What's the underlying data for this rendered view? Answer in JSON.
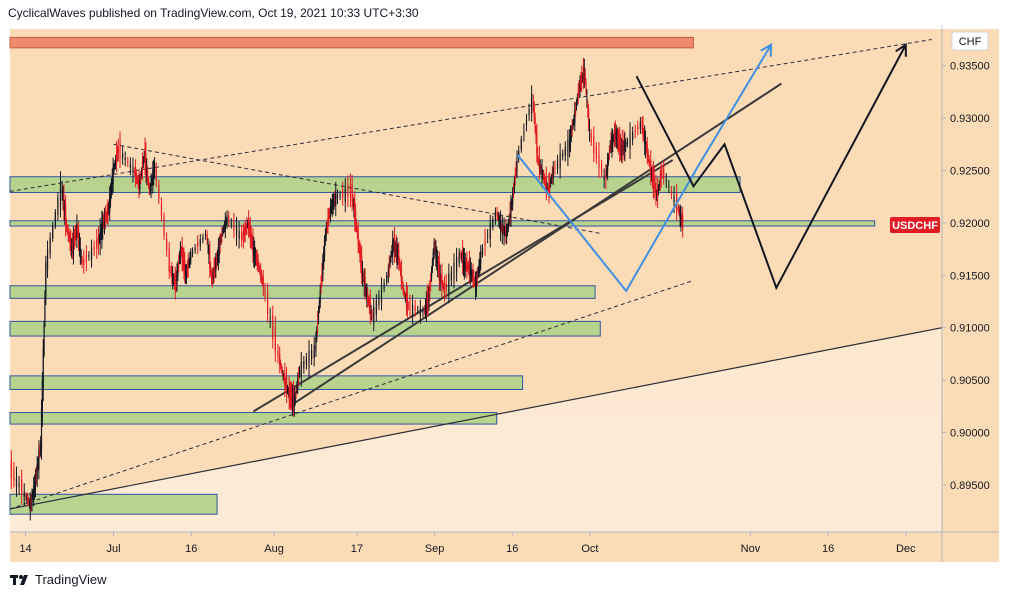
{
  "header": {
    "text": "CyclicalWaves published on TradingView.com, Oct 19, 2021 10:33 UTC+3:30"
  },
  "footer": {
    "brand": "TradingView",
    "logo_icon": "tradingview-logo-icon"
  },
  "chart_data": {
    "type": "candlestick",
    "currency_label": "CHF",
    "symbol": "USDCHF",
    "last_price": 0.9198,
    "y_ticks": [
      "0.93500",
      "0.93000",
      "0.92500",
      "0.92000",
      "0.91500",
      "0.91000",
      "0.90500",
      "0.90000",
      "0.89500"
    ],
    "y_tick_values": [
      0.935,
      0.93,
      0.925,
      0.92,
      0.915,
      0.91,
      0.905,
      0.9,
      0.895
    ],
    "x_ticks": [
      "14",
      "Jul",
      "16",
      "Aug",
      "17",
      "Sep",
      "16",
      "Oct",
      "Nov",
      "16",
      "Dec"
    ],
    "x_tick_dates": [
      "2021-06-14",
      "2021-07-01",
      "2021-07-16",
      "2021-08-01",
      "2021-08-17",
      "2021-09-01",
      "2021-09-16",
      "2021-10-01",
      "2021-11-01",
      "2021-11-16",
      "2021-12-01"
    ],
    "x_range": [
      "2021-06-11",
      "2021-12-08"
    ],
    "y_range": [
      0.8905,
      0.9385
    ],
    "colors": {
      "background": "#fcdcb6",
      "up_candle": "#131722",
      "down_candle": "#e31b23",
      "zone_fill": "#b7d38e",
      "zone_border": "#2f55a0",
      "resistance_fill": "#f08a6c",
      "blue_path": "#3f8fe0",
      "black_path": "#131722",
      "price_label": "#e31b23"
    },
    "price_series": [
      [
        "2021-06-11",
        0.8965
      ],
      [
        "2021-06-14",
        0.894
      ],
      [
        "2021-06-15",
        0.893
      ],
      [
        "2021-06-16",
        0.8955
      ],
      [
        "2021-06-17",
        0.899
      ],
      [
        "2021-06-18",
        0.916
      ],
      [
        "2021-06-21",
        0.9235
      ],
      [
        "2021-06-22",
        0.9195
      ],
      [
        "2021-06-23",
        0.9175
      ],
      [
        "2021-06-24",
        0.9195
      ],
      [
        "2021-06-25",
        0.916
      ],
      [
        "2021-06-28",
        0.918
      ],
      [
        "2021-06-29",
        0.92
      ],
      [
        "2021-06-30",
        0.921
      ],
      [
        "2021-07-01",
        0.925
      ],
      [
        "2021-07-02",
        0.927
      ],
      [
        "2021-07-05",
        0.925
      ],
      [
        "2021-07-06",
        0.9235
      ],
      [
        "2021-07-07",
        0.9265
      ],
      [
        "2021-07-08",
        0.923
      ],
      [
        "2021-07-09",
        0.9255
      ],
      [
        "2021-07-12",
        0.9155
      ],
      [
        "2021-07-13",
        0.914
      ],
      [
        "2021-07-14",
        0.9175
      ],
      [
        "2021-07-15",
        0.915
      ],
      [
        "2021-07-16",
        0.917
      ],
      [
        "2021-07-19",
        0.919
      ],
      [
        "2021-07-20",
        0.9145
      ],
      [
        "2021-07-21",
        0.9165
      ],
      [
        "2021-07-22",
        0.919
      ],
      [
        "2021-07-23",
        0.9205
      ],
      [
        "2021-07-26",
        0.9185
      ],
      [
        "2021-07-27",
        0.92
      ],
      [
        "2021-07-28",
        0.9175
      ],
      [
        "2021-07-29",
        0.916
      ],
      [
        "2021-07-30",
        0.914
      ],
      [
        "2021-08-02",
        0.907
      ],
      [
        "2021-08-03",
        0.905
      ],
      [
        "2021-08-04",
        0.9035
      ],
      [
        "2021-08-05",
        0.903
      ],
      [
        "2021-08-06",
        0.906
      ],
      [
        "2021-08-09",
        0.908
      ],
      [
        "2021-08-10",
        0.9135
      ],
      [
        "2021-08-11",
        0.919
      ],
      [
        "2021-08-12",
        0.9215
      ],
      [
        "2021-08-13",
        0.9225
      ],
      [
        "2021-08-16",
        0.923
      ],
      [
        "2021-08-17",
        0.9195
      ],
      [
        "2021-08-18",
        0.9155
      ],
      [
        "2021-08-19",
        0.913
      ],
      [
        "2021-08-20",
        0.911
      ],
      [
        "2021-08-23",
        0.915
      ],
      [
        "2021-08-24",
        0.918
      ],
      [
        "2021-08-25",
        0.917
      ],
      [
        "2021-08-26",
        0.9135
      ],
      [
        "2021-08-27",
        0.912
      ],
      [
        "2021-08-30",
        0.9115
      ],
      [
        "2021-08-31",
        0.913
      ],
      [
        "2021-09-01",
        0.918
      ],
      [
        "2021-09-02",
        0.915
      ],
      [
        "2021-09-03",
        0.9135
      ],
      [
        "2021-09-06",
        0.917
      ],
      [
        "2021-09-07",
        0.916
      ],
      [
        "2021-09-08",
        0.9155
      ],
      [
        "2021-09-09",
        0.914
      ],
      [
        "2021-09-10",
        0.917
      ],
      [
        "2021-09-13",
        0.921
      ],
      [
        "2021-09-14",
        0.9195
      ],
      [
        "2021-09-15",
        0.919
      ],
      [
        "2021-09-16",
        0.922
      ],
      [
        "2021-09-17",
        0.926
      ],
      [
        "2021-09-20",
        0.932
      ],
      [
        "2021-09-21",
        0.926
      ],
      [
        "2021-09-22",
        0.9245
      ],
      [
        "2021-09-23",
        0.923
      ],
      [
        "2021-09-24",
        0.925
      ],
      [
        "2021-09-27",
        0.9275
      ],
      [
        "2021-09-28",
        0.93
      ],
      [
        "2021-09-29",
        0.933
      ],
      [
        "2021-09-30",
        0.9345
      ],
      [
        "2021-10-01",
        0.9285
      ],
      [
        "2021-10-04",
        0.924
      ],
      [
        "2021-10-05",
        0.9275
      ],
      [
        "2021-10-06",
        0.9285
      ],
      [
        "2021-10-07",
        0.927
      ],
      [
        "2021-10-08",
        0.9275
      ],
      [
        "2021-10-11",
        0.9295
      ],
      [
        "2021-10-12",
        0.927
      ],
      [
        "2021-10-13",
        0.9245
      ],
      [
        "2021-10-14",
        0.9225
      ],
      [
        "2021-10-15",
        0.925
      ],
      [
        "2021-10-18",
        0.9215
      ],
      [
        "2021-10-19",
        0.9198
      ]
    ],
    "zones": [
      {
        "type": "resistance",
        "start": "2021-06-11",
        "end": "2021-10-21",
        "low": 0.9367,
        "high": 0.9377
      },
      {
        "type": "support",
        "start": "2021-06-11",
        "end": "2021-10-30",
        "low": 0.9229,
        "high": 0.9244
      },
      {
        "type": "support",
        "start": "2021-06-11",
        "end": "2021-11-25",
        "low": 0.9197,
        "high": 0.9202
      },
      {
        "type": "support",
        "start": "2021-06-11",
        "end": "2021-10-02",
        "low": 0.9128,
        "high": 0.914
      },
      {
        "type": "support",
        "start": "2021-06-11",
        "end": "2021-10-03",
        "low": 0.9092,
        "high": 0.9106
      },
      {
        "type": "support",
        "start": "2021-06-11",
        "end": "2021-09-18",
        "low": 0.9041,
        "high": 0.9054
      },
      {
        "type": "support",
        "start": "2021-06-11",
        "end": "2021-09-13",
        "low": 0.9008,
        "high": 0.9019
      },
      {
        "type": "support",
        "start": "2021-06-11",
        "end": "2021-07-21",
        "low": 0.8922,
        "high": 0.8941
      }
    ],
    "trendlines": [
      {
        "style": "dashed",
        "points": [
          [
            "2021-06-11",
            0.923
          ],
          [
            "2021-12-06",
            0.9375
          ]
        ]
      },
      {
        "style": "dashed",
        "points": [
          [
            "2021-07-01",
            0.9275
          ],
          [
            "2021-10-03",
            0.919
          ]
        ]
      },
      {
        "style": "dashed",
        "points": [
          [
            "2021-06-11",
            0.8927
          ],
          [
            "2021-10-21",
            0.9145
          ]
        ]
      },
      {
        "style": "solid",
        "points": [
          [
            "2021-06-11",
            0.8927
          ],
          [
            "2021-12-08",
            0.91
          ]
        ]
      },
      {
        "style": "solid-thick",
        "points": [
          [
            "2021-08-04",
            0.9025
          ],
          [
            "2021-11-07",
            0.9333
          ]
        ]
      },
      {
        "style": "solid-thick",
        "points": [
          [
            "2021-07-28",
            0.902
          ],
          [
            "2021-10-17",
            0.926
          ]
        ]
      }
    ],
    "projections": [
      {
        "name": "",
        "color": "blue",
        "points": [
          [
            "2021-09-17",
            0.9265
          ],
          [
            "2021-10-08",
            0.9135
          ],
          [
            "2021-10-22",
            0.9255
          ],
          [
            "2021-11-05",
            0.937
          ]
        ]
      },
      {
        "name": "",
        "color": "black",
        "points": [
          [
            "2021-10-10",
            0.934
          ],
          [
            "2021-10-21",
            0.9235
          ],
          [
            "2021-10-27",
            0.9275
          ],
          [
            "2021-11-06",
            0.9138
          ],
          [
            "2021-12-01",
            0.937
          ]
        ]
      }
    ]
  }
}
